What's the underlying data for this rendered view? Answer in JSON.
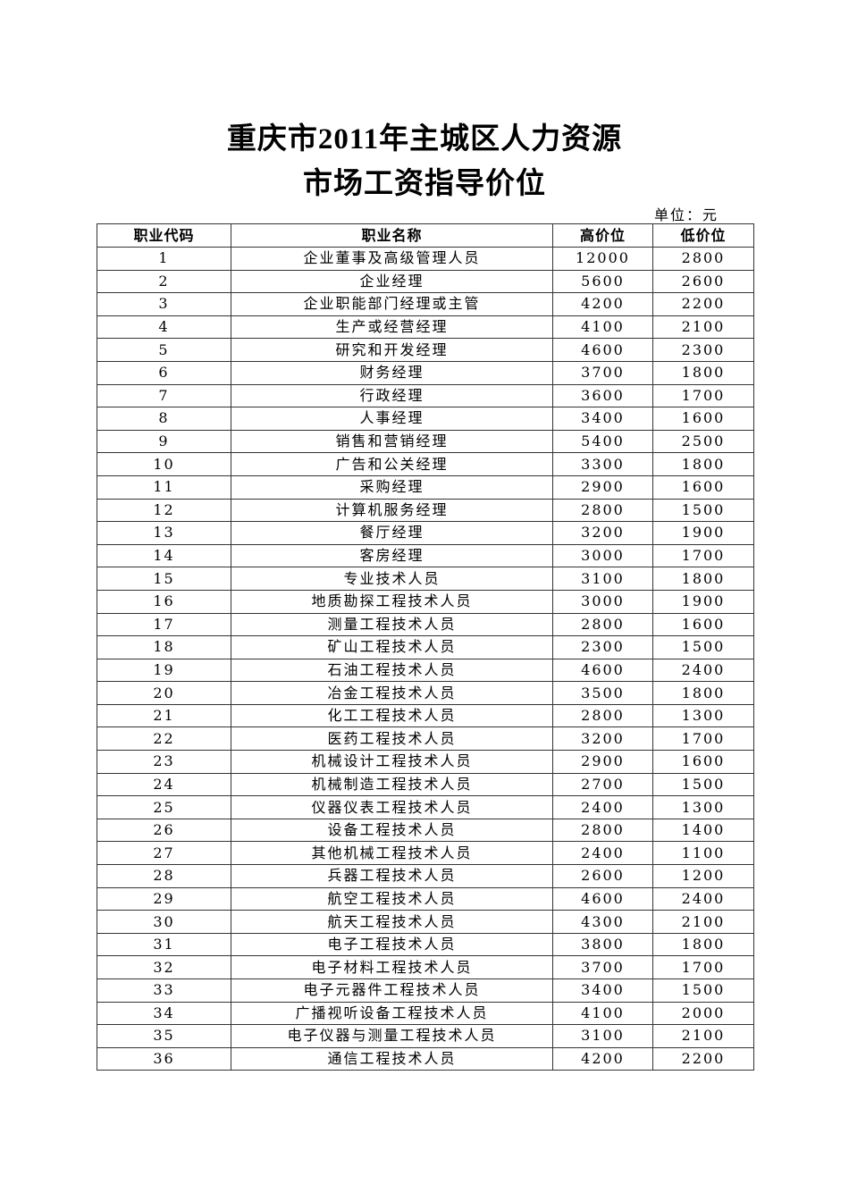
{
  "title_line1": "重庆市2011年主城区人力资源",
  "title_line2": "市场工资指导价位",
  "unit": "单位：元",
  "table": {
    "headers": [
      "职业代码",
      "职业名称",
      "高价位",
      "低价位"
    ],
    "rows": [
      [
        "1",
        "企业董事及高级管理人员",
        "12000",
        "2800"
      ],
      [
        "2",
        "企业经理",
        "5600",
        "2600"
      ],
      [
        "3",
        "企业职能部门经理或主管",
        "4200",
        "2200"
      ],
      [
        "4",
        "生产或经营经理",
        "4100",
        "2100"
      ],
      [
        "5",
        "研究和开发经理",
        "4600",
        "2300"
      ],
      [
        "6",
        "财务经理",
        "3700",
        "1800"
      ],
      [
        "7",
        "行政经理",
        "3600",
        "1700"
      ],
      [
        "8",
        "人事经理",
        "3400",
        "1600"
      ],
      [
        "9",
        "销售和营销经理",
        "5400",
        "2500"
      ],
      [
        "10",
        "广告和公关经理",
        "3300",
        "1800"
      ],
      [
        "11",
        "采购经理",
        "2900",
        "1600"
      ],
      [
        "12",
        "计算机服务经理",
        "2800",
        "1500"
      ],
      [
        "13",
        "餐厅经理",
        "3200",
        "1900"
      ],
      [
        "14",
        "客房经理",
        "3000",
        "1700"
      ],
      [
        "15",
        "专业技术人员",
        "3100",
        "1800"
      ],
      [
        "16",
        "地质勘探工程技术人员",
        "3000",
        "1900"
      ],
      [
        "17",
        "测量工程技术人员",
        "2800",
        "1600"
      ],
      [
        "18",
        "矿山工程技术人员",
        "2300",
        "1500"
      ],
      [
        "19",
        "石油工程技术人员",
        "4600",
        "2400"
      ],
      [
        "20",
        "冶金工程技术人员",
        "3500",
        "1800"
      ],
      [
        "21",
        "化工工程技术人员",
        "2800",
        "1300"
      ],
      [
        "22",
        "医药工程技术人员",
        "3200",
        "1700"
      ],
      [
        "23",
        "机械设计工程技术人员",
        "2900",
        "1600"
      ],
      [
        "24",
        "机械制造工程技术人员",
        "2700",
        "1500"
      ],
      [
        "25",
        "仪器仪表工程技术人员",
        "2400",
        "1300"
      ],
      [
        "26",
        "设备工程技术人员",
        "2800",
        "1400"
      ],
      [
        "27",
        "其他机械工程技术人员",
        "2400",
        "1100"
      ],
      [
        "28",
        "兵器工程技术人员",
        "2600",
        "1200"
      ],
      [
        "29",
        "航空工程技术人员",
        "4600",
        "2400"
      ],
      [
        "30",
        "航天工程技术人员",
        "4300",
        "2100"
      ],
      [
        "31",
        "电子工程技术人员",
        "3800",
        "1800"
      ],
      [
        "32",
        "电子材料工程技术人员",
        "3700",
        "1700"
      ],
      [
        "33",
        "电子元器件工程技术人员",
        "3400",
        "1500"
      ],
      [
        "34",
        "广播视听设备工程技术人员",
        "4100",
        "2000"
      ],
      [
        "35",
        "电子仪器与测量工程技术人员",
        "3100",
        "2100"
      ],
      [
        "36",
        "通信工程技术人员",
        "4200",
        "2200"
      ]
    ]
  }
}
